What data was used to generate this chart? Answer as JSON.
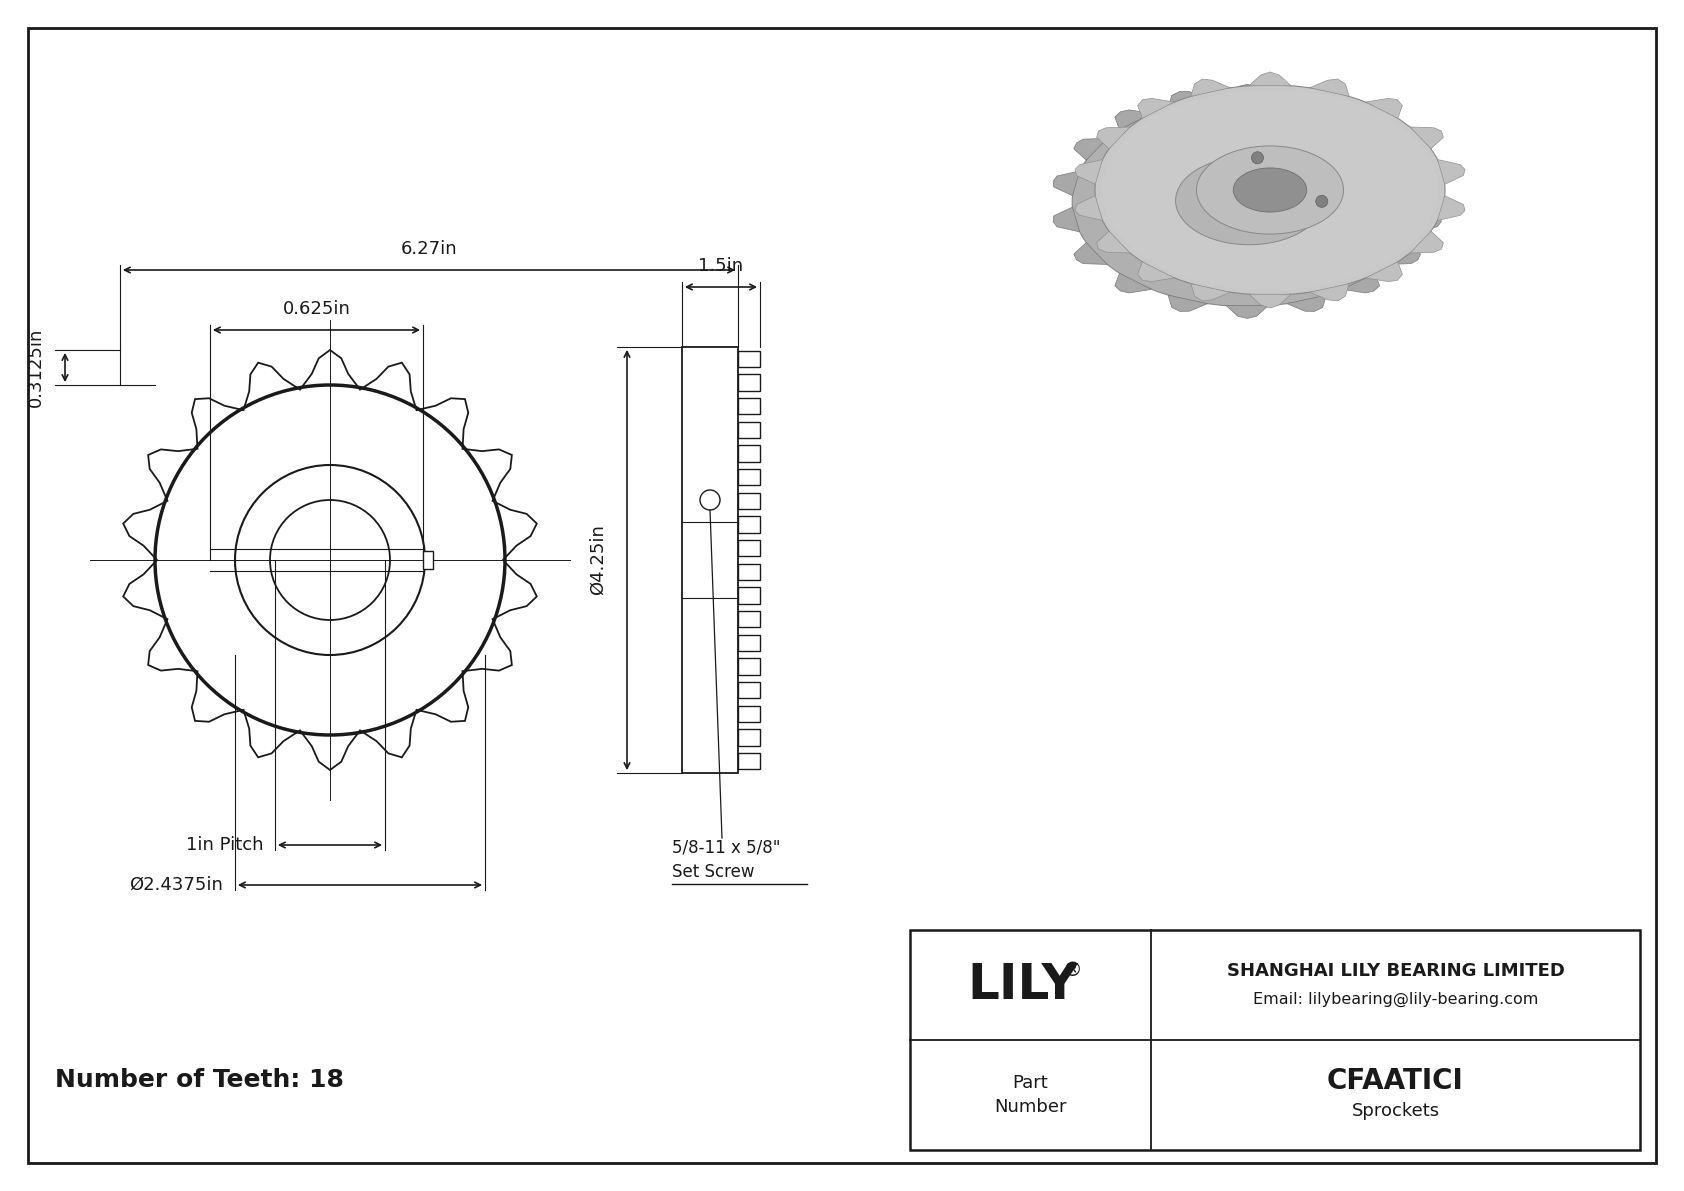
{
  "bg_color": "#ffffff",
  "line_color": "#1a1a1a",
  "dim_color": "#1a1a1a",
  "title_text": "Number of Teeth: 18",
  "part_number": "CFAATICI",
  "part_type": "Sprockets",
  "company": "SHANGHAI LILY BEARING LIMITED",
  "email": "Email: lilybearing@lily-bearing.com",
  "brand": "LILY",
  "num_teeth": 18,
  "dim_627": "6.27in",
  "dim_0625": "0.625in",
  "dim_03125": "0.3125in",
  "dim_1pitch": "1in Pitch",
  "dim_24375": "Ø2.4375in",
  "dim_15": "1.5in",
  "dim_425": "Ø4.25in",
  "dim_setscrew": "5/8-11 x 5/8\"\nSet Screw"
}
